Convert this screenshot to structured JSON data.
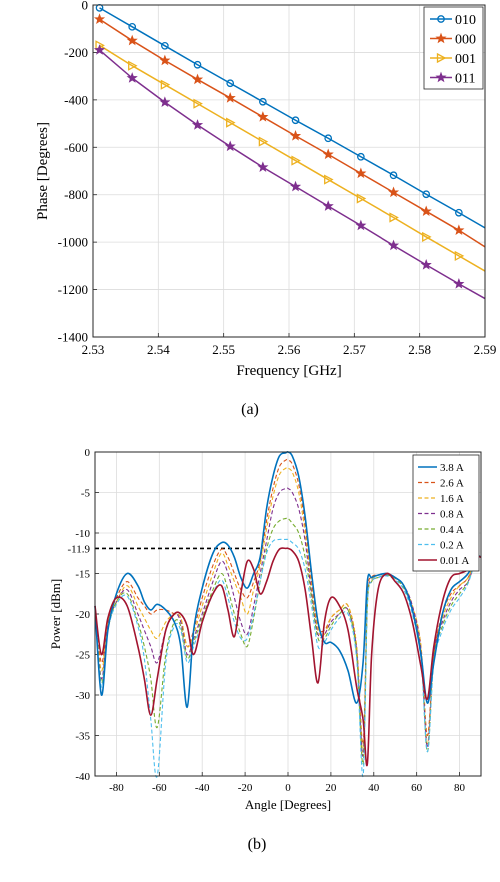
{
  "chart_data": [
    {
      "type": "line",
      "caption": "(a)",
      "xlabel": "Frequency [GHz]",
      "ylabel": "Phase [Degrees]",
      "xlim": [
        2.53,
        2.59
      ],
      "ylim": [
        -1400,
        0
      ],
      "xticks": [
        "2.53",
        "2.54",
        "2.55",
        "2.56",
        "2.57",
        "2.58",
        "2.59"
      ],
      "yticks": [
        "0",
        "-200",
        "-400",
        "-600",
        "-800",
        "-1000",
        "-1200",
        "-1400"
      ],
      "grid": true,
      "legend_position": "top-right",
      "series": [
        {
          "name": "010",
          "color": "#0072BD",
          "marker": "circle",
          "x": [
            2.531,
            2.536,
            2.541,
            2.546,
            2.551,
            2.556,
            2.561,
            2.566,
            2.571,
            2.576,
            2.581,
            2.586
          ],
          "y": [
            -12,
            -92,
            -172,
            -252,
            -330,
            -408,
            -486,
            -562,
            -640,
            -718,
            -798,
            -876
          ],
          "end": [
            2.59,
            -940
          ]
        },
        {
          "name": "000",
          "color": "#D95319",
          "marker": "star",
          "x": [
            2.531,
            2.536,
            2.541,
            2.546,
            2.551,
            2.556,
            2.561,
            2.566,
            2.571,
            2.576,
            2.581,
            2.586
          ],
          "y": [
            -60,
            -150,
            -234,
            -314,
            -392,
            -472,
            -552,
            -630,
            -710,
            -790,
            -870,
            -950
          ],
          "end": [
            2.59,
            -1020
          ]
        },
        {
          "name": "001",
          "color": "#EDB120",
          "marker": "triangle-right",
          "x": [
            2.531,
            2.536,
            2.541,
            2.546,
            2.551,
            2.556,
            2.561,
            2.566,
            2.571,
            2.576,
            2.581,
            2.586
          ],
          "y": [
            -170,
            -256,
            -336,
            -416,
            -496,
            -576,
            -656,
            -736,
            -816,
            -896,
            -978,
            -1058
          ],
          "end": [
            2.59,
            -1122
          ]
        },
        {
          "name": "011",
          "color": "#7E2F8E",
          "marker": "star",
          "x": [
            2.531,
            2.536,
            2.541,
            2.546,
            2.551,
            2.556,
            2.561,
            2.566,
            2.571,
            2.576,
            2.581,
            2.586
          ],
          "y": [
            -190,
            -308,
            -410,
            -506,
            -596,
            -684,
            -766,
            -848,
            -930,
            -1014,
            -1096,
            -1176
          ],
          "end": [
            2.59,
            -1238
          ]
        }
      ]
    },
    {
      "type": "line",
      "caption": "(b)",
      "xlabel": "Angle [Degrees]",
      "ylabel": "Power [dBm]",
      "xlim": [
        -90,
        90
      ],
      "ylim": [
        -40,
        0
      ],
      "xticks": [
        "-80",
        "-60",
        "-40",
        "-20",
        "0",
        "20",
        "40",
        "60",
        "80"
      ],
      "yticks": [
        "0",
        "-5",
        "-10",
        "-15",
        "-20",
        "-25",
        "-30",
        "-35",
        "-40"
      ],
      "reference_line": {
        "label": "-11.9",
        "y": -11.9,
        "x_end": -13
      },
      "grid": true,
      "legend_position": "top-right",
      "x": [
        -90,
        -87,
        -84,
        -80,
        -75,
        -70,
        -67,
        -64,
        -61,
        -57,
        -53,
        -50,
        -47,
        -44,
        -40,
        -35,
        -31,
        -28,
        -25,
        -22,
        -19,
        -16,
        -13,
        -10,
        -7,
        -4,
        -1,
        0,
        2,
        5,
        8,
        11,
        14,
        17,
        20,
        24,
        28,
        32,
        35,
        37,
        39,
        42,
        46,
        50,
        54,
        58,
        62,
        65,
        68,
        72,
        76,
        80,
        84,
        88,
        90
      ],
      "series": [
        {
          "name": "3.8 A",
          "color": "#0072BD",
          "dash": "solid",
          "y": [
            -19,
            -30,
            -22,
            -17.5,
            -15,
            -16.5,
            -18.5,
            -19.5,
            -18.8,
            -19.5,
            -21,
            -24,
            -31.5,
            -22,
            -16.8,
            -12.5,
            -11.2,
            -11.5,
            -13,
            -15.5,
            -16.8,
            -15,
            -13,
            -7,
            -3,
            -0.5,
            -0.1,
            0,
            -0.5,
            -3,
            -8,
            -15,
            -21,
            -23.5,
            -23.5,
            -24.5,
            -27,
            -31,
            -26,
            -16,
            -15.5,
            -15.2,
            -15,
            -15.5,
            -16.5,
            -19.5,
            -25,
            -31,
            -26,
            -20,
            -17,
            -16,
            -15,
            -13,
            -13
          ]
        },
        {
          "name": "2.6 A",
          "color": "#D95319",
          "dash": "dashed",
          "y": [
            -19,
            -26,
            -21,
            -18,
            -16,
            -18,
            -19,
            -20,
            -19.5,
            -19.5,
            -20,
            -20.5,
            -24,
            -22,
            -18,
            -14,
            -12,
            -13,
            -15,
            -17,
            -18,
            -16,
            -13.5,
            -8.5,
            -4.5,
            -1.8,
            -1,
            -1,
            -1.5,
            -4,
            -9,
            -16,
            -21.5,
            -22,
            -20.5,
            -19.5,
            -19,
            -24,
            -36,
            -18,
            -15.5,
            -15.2,
            -15,
            -15.5,
            -16.5,
            -19,
            -24,
            -35,
            -25,
            -20,
            -17.5,
            -16.5,
            -15.5,
            -13,
            -13
          ]
        },
        {
          "name": "1.6 A",
          "color": "#EDB120",
          "dash": "dashed",
          "y": [
            -19,
            -27,
            -21,
            -18.5,
            -16.5,
            -19,
            -20.5,
            -22,
            -23,
            -21,
            -20,
            -20.5,
            -24,
            -22.5,
            -19,
            -15,
            -12.5,
            -14,
            -16,
            -18,
            -20,
            -17,
            -14,
            -9.5,
            -5.5,
            -2.8,
            -2,
            -2,
            -2.5,
            -5,
            -10,
            -17,
            -22,
            -22.5,
            -20.5,
            -19.5,
            -19,
            -24,
            -37,
            -18.5,
            -15.8,
            -15.5,
            -15.2,
            -15.5,
            -16.5,
            -19,
            -24,
            -36,
            -25,
            -20.5,
            -18,
            -16.5,
            -15.5,
            -13,
            -13
          ]
        },
        {
          "name": "0.8 A",
          "color": "#7E2F8E",
          "dash": "dashed",
          "y": [
            -19,
            -28,
            -21.5,
            -18.5,
            -17,
            -20,
            -22,
            -24,
            -26,
            -22,
            -20,
            -21,
            -25,
            -23,
            -20,
            -16,
            -13.5,
            -15,
            -18,
            -21,
            -22.5,
            -19,
            -15,
            -11,
            -7,
            -5,
            -4.5,
            -4.5,
            -5,
            -7,
            -11,
            -17.5,
            -22.5,
            -22.5,
            -21,
            -20,
            -19.5,
            -24.5,
            -37.5,
            -18.5,
            -16,
            -15.5,
            -15.2,
            -15.5,
            -16.5,
            -19,
            -24.5,
            -36.5,
            -25,
            -21,
            -18.5,
            -17,
            -16,
            -13,
            -13
          ]
        },
        {
          "name": "0.4 A",
          "color": "#77AC30",
          "dash": "dashed",
          "y": [
            -19,
            -28.5,
            -22,
            -18.5,
            -17.5,
            -21,
            -24,
            -28,
            -34,
            -25,
            -21,
            -21.5,
            -25.5,
            -23.5,
            -20.5,
            -17,
            -15,
            -17,
            -20,
            -22.5,
            -24,
            -20.5,
            -16,
            -12,
            -9.5,
            -8.5,
            -8.2,
            -8.2,
            -8.8,
            -10,
            -13,
            -18,
            -23,
            -23,
            -21.5,
            -20,
            -19.5,
            -25,
            -38.5,
            -19,
            -16,
            -15.5,
            -15.2,
            -15.6,
            -16.8,
            -19.5,
            -25,
            -37,
            -25.5,
            -21.5,
            -19,
            -17.5,
            -16,
            -13,
            -13
          ]
        },
        {
          "name": "0.2 A",
          "color": "#4DBEEE",
          "dash": "dashed",
          "y": [
            -19,
            -29,
            -22,
            -18.8,
            -17.8,
            -21.5,
            -25.5,
            -33,
            -40,
            -26,
            -21.5,
            -22,
            -26,
            -24,
            -21,
            -17.5,
            -15.8,
            -18,
            -21,
            -23,
            -23,
            -20,
            -16,
            -12.5,
            -11,
            -10.8,
            -10.8,
            -10.8,
            -11.2,
            -12,
            -14.5,
            -19,
            -24,
            -23.5,
            -22,
            -20.5,
            -20,
            -25.5,
            -40,
            -19,
            -16,
            -15.5,
            -15.3,
            -15.8,
            -17,
            -20,
            -25.5,
            -37,
            -26,
            -22,
            -19.5,
            -18,
            -16.2,
            -13,
            -13
          ]
        },
        {
          "name": "0.01 A",
          "color": "#A2142F",
          "dash": "solid",
          "y": [
            -19,
            -25,
            -20.5,
            -18,
            -19,
            -24,
            -28,
            -32.5,
            -28,
            -22,
            -20,
            -20,
            -21.5,
            -25,
            -21,
            -17.5,
            -16.5,
            -19.5,
            -22.8,
            -17.5,
            -13.5,
            -14.5,
            -17.5,
            -16,
            -13.5,
            -12,
            -11.9,
            -11.9,
            -12.2,
            -13.5,
            -17,
            -23,
            -28.5,
            -21,
            -18,
            -19,
            -22,
            -29,
            -33,
            -38.5,
            -25,
            -17,
            -15,
            -16,
            -17.5,
            -21,
            -26.5,
            -30.5,
            -24,
            -18.5,
            -15.5,
            -15,
            -14.5,
            -13,
            -13
          ]
        }
      ]
    }
  ]
}
